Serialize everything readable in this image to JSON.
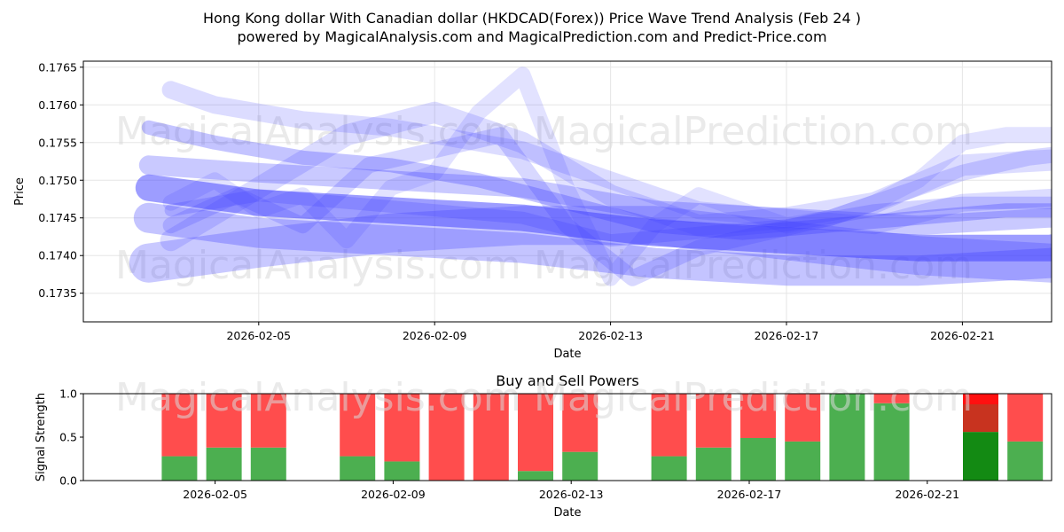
{
  "title": "Hong Kong dollar With Canadian dollar (HKDCAD(Forex)) Price Wave Trend Analysis (Feb 24 )",
  "subtitle": "powered by MagicalAnalysis.com and MagicalPrediction.com and Predict-Price.com",
  "watermarks": [
    "MagicalAnalysis.com",
    "MagicalPrediction.com"
  ],
  "colors": {
    "wave": "#3c3cff",
    "buy": "#4caf50",
    "sell": "#ff4d4d",
    "buy_strong": "#138a13",
    "sell_strong": "#ff1010"
  },
  "chart_data": [
    {
      "type": "line",
      "title": "",
      "xlabel": "Date",
      "ylabel": "Price",
      "x_ticks": [
        "2026-02-05",
        "2026-02-09",
        "2026-02-13",
        "2026-02-17",
        "2026-02-21"
      ],
      "y_ticks": [
        "0.1735",
        "0.1740",
        "0.1745",
        "0.1750",
        "0.1755",
        "0.1760",
        "0.1765"
      ],
      "xlim": [
        0,
        22
      ],
      "ylim": [
        0.17312,
        0.17658
      ],
      "grid": true,
      "note": "x values are days since 2026-02-02",
      "series": [
        {
          "name": "wave-1",
          "x": [
            0.5,
            3,
            6,
            9,
            12,
            15,
            18,
            21,
            22
          ],
          "y": [
            0.1749,
            0.1747,
            0.1746,
            0.1745,
            0.1743,
            0.1742,
            0.1741,
            0.1741,
            0.1742
          ],
          "width": 30,
          "opacity": 0.5
        },
        {
          "name": "wave-2",
          "x": [
            0.5,
            3,
            6,
            9,
            12,
            15,
            18,
            21,
            22
          ],
          "y": [
            0.1745,
            0.1743,
            0.1742,
            0.1741,
            0.1739,
            0.1738,
            0.1738,
            0.1739,
            0.174
          ],
          "width": 34,
          "opacity": 0.3
        },
        {
          "name": "wave-3",
          "x": [
            0.5,
            3,
            6,
            9,
            12,
            15,
            18,
            21,
            22
          ],
          "y": [
            0.1752,
            0.1751,
            0.175,
            0.1749,
            0.1746,
            0.1745,
            0.1744,
            0.1745,
            0.1745
          ],
          "width": 22,
          "opacity": 0.28
        },
        {
          "name": "wave-4",
          "x": [
            0.5,
            2,
            4,
            6,
            8,
            10,
            12,
            14,
            16,
            18,
            20,
            22
          ],
          "y": [
            0.1757,
            0.1755,
            0.1753,
            0.1752,
            0.175,
            0.1747,
            0.1744,
            0.1743,
            0.1744,
            0.1745,
            0.1746,
            0.1746
          ],
          "width": 16,
          "opacity": 0.3
        },
        {
          "name": "wave-5",
          "x": [
            1,
            2,
            4,
            6,
            7,
            9,
            11,
            13,
            15,
            17,
            19,
            22
          ],
          "y": [
            0.1762,
            0.176,
            0.1758,
            0.1757,
            0.1756,
            0.1754,
            0.175,
            0.1746,
            0.1745,
            0.1744,
            0.1747,
            0.1748
          ],
          "width": 20,
          "opacity": 0.18
        },
        {
          "name": "wave-6",
          "x": [
            1,
            3,
            5,
            7,
            9,
            11,
            13,
            15,
            17,
            19,
            22
          ],
          "y": [
            0.1742,
            0.1749,
            0.1756,
            0.1759,
            0.1755,
            0.1748,
            0.1744,
            0.1745,
            0.1747,
            0.1752,
            0.1753
          ],
          "width": 24,
          "opacity": 0.18
        },
        {
          "name": "wave-7",
          "x": [
            1,
            2.5,
            4,
            5.5,
            7,
            8.5,
            10,
            11.5,
            13,
            14.5,
            16,
            17.5,
            19,
            20.5,
            22
          ],
          "y": [
            0.1744,
            0.1748,
            0.1744,
            0.1752,
            0.1754,
            0.1756,
            0.1744,
            0.1737,
            0.1741,
            0.1743,
            0.1745,
            0.1748,
            0.1751,
            0.1753,
            0.1754
          ],
          "width": 18,
          "opacity": 0.2
        },
        {
          "name": "wave-8",
          "x": [
            1,
            2,
            3,
            4,
            5,
            6,
            7,
            8,
            9,
            10,
            11,
            12,
            13,
            14,
            15,
            16,
            17,
            18,
            19,
            20,
            21,
            22
          ],
          "y": [
            0.1747,
            0.175,
            0.1746,
            0.1748,
            0.1742,
            0.1749,
            0.1751,
            0.1759,
            0.1764,
            0.1749,
            0.1737,
            0.1744,
            0.1748,
            0.1746,
            0.1744,
            0.1745,
            0.1747,
            0.175,
            0.1755,
            0.1756,
            0.1756,
            0.1757
          ],
          "width": 18,
          "opacity": 0.15
        },
        {
          "name": "wave-9",
          "x": [
            0.5,
            3,
            6,
            9,
            12,
            15,
            18,
            21,
            22
          ],
          "y": [
            0.1739,
            0.1741,
            0.1743,
            0.1744,
            0.1744,
            0.1742,
            0.174,
            0.1739,
            0.1739
          ],
          "width": 44,
          "opacity": 0.28
        },
        {
          "name": "wave-10",
          "x": [
            1,
            3,
            5,
            7,
            9,
            11,
            13,
            15,
            17,
            19,
            22
          ],
          "y": [
            0.1746,
            0.1748,
            0.1747,
            0.1746,
            0.1745,
            0.1742,
            0.1743,
            0.1744,
            0.1746,
            0.1747,
            0.1747
          ],
          "width": 14,
          "opacity": 0.22
        }
      ]
    },
    {
      "type": "bar",
      "title": "Buy and Sell Powers",
      "xlabel": "Date",
      "ylabel": "Signal Strength",
      "x_ticks": [
        "2026-02-05",
        "2026-02-09",
        "2026-02-13",
        "2026-02-17",
        "2026-02-21"
      ],
      "y_ticks": [
        "0.0",
        "0.5",
        "1.0"
      ],
      "ylim": [
        0,
        1
      ],
      "categories": [
        "2026-02-04",
        "2026-02-05",
        "2026-02-06",
        "2026-02-08",
        "2026-02-09",
        "2026-02-10",
        "2026-02-11",
        "2026-02-12",
        "2026-02-13",
        "2026-02-15",
        "2026-02-16",
        "2026-02-17",
        "2026-02-18",
        "2026-02-19",
        "2026-02-20",
        "2026-02-22",
        "2026-02-23"
      ],
      "x_index": [
        2,
        3,
        4,
        6,
        7,
        8,
        9,
        10,
        11,
        13,
        14,
        15,
        16,
        17,
        18,
        20,
        21
      ],
      "series": [
        {
          "name": "Buy",
          "values": [
            0.28,
            0.38,
            0.38,
            0.28,
            0.22,
            0.0,
            0.0,
            0.11,
            0.33,
            0.28,
            0.38,
            0.49,
            0.45,
            1.0,
            0.89,
            0.56,
            0.45
          ]
        },
        {
          "name": "Sell",
          "values": [
            0.72,
            0.62,
            0.62,
            0.72,
            0.78,
            1.0,
            1.0,
            0.89,
            0.67,
            0.72,
            0.62,
            0.51,
            0.55,
            0.0,
            0.11,
            0.44,
            0.55
          ]
        }
      ],
      "highlight_index": 15
    }
  ]
}
